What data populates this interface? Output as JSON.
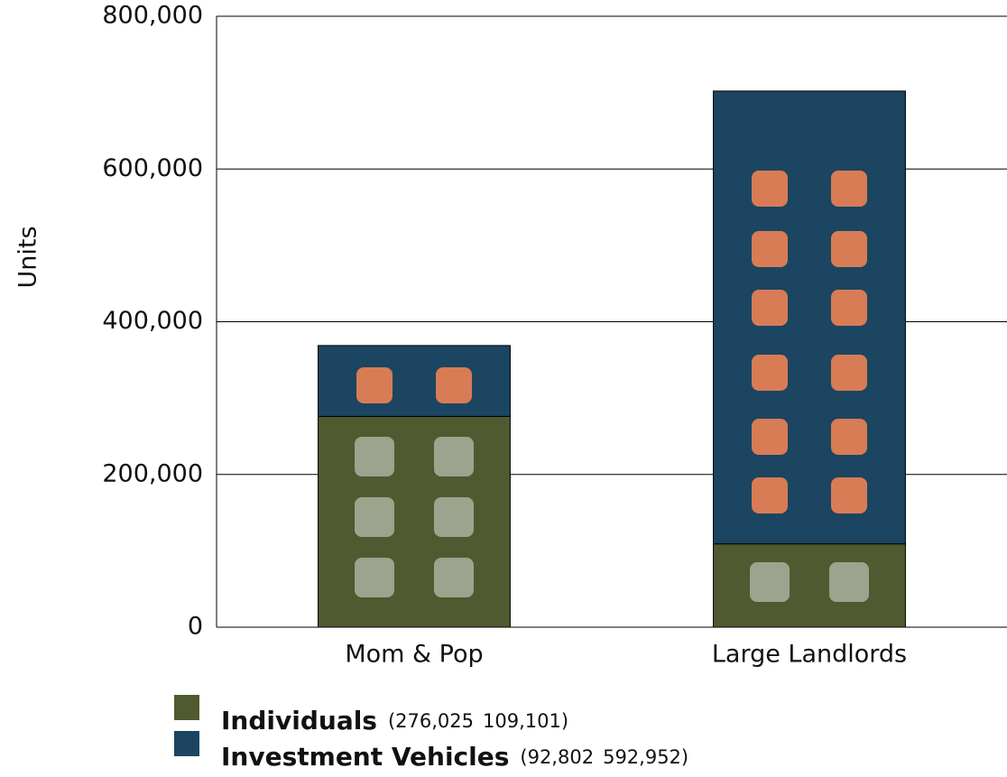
{
  "chart_data": {
    "type": "stacked_bar",
    "y_label": "Units",
    "categories": [
      "Mom & Pop",
      "Large Landlords"
    ],
    "series": [
      {
        "name": "Individuals",
        "color": "#4f5a30",
        "values": [
          276025,
          109101
        ],
        "value_labels": [
          "(276,025",
          "109,101)"
        ]
      },
      {
        "name": "Investment Vehicles",
        "color": "#1b4560",
        "values": [
          92802,
          592952
        ],
        "value_labels": [
          "(92,802",
          "592,952)"
        ]
      }
    ],
    "ylim": [
      0,
      800000
    ],
    "yticks": [
      0,
      {
        "value": 200000,
        "label": "200,000"
      },
      {
        "value": 400000,
        "label": "400,000"
      },
      {
        "value": 600000,
        "label": "600,000"
      },
      {
        "value": 800000,
        "label": "800,000"
      }
    ],
    "grid": true
  }
}
